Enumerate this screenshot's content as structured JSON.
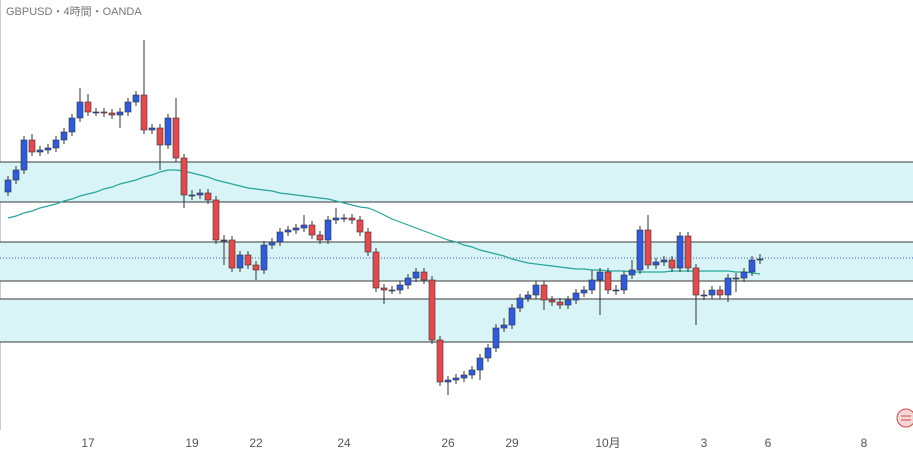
{
  "chart_data": {
    "type": "candlestick",
    "title": "GBPUSD・4時間・OANDA",
    "categories": [
      null,
      null,
      null,
      null,
      null,
      null,
      null,
      null,
      null,
      null,
      "17",
      null,
      null,
      null,
      null,
      null,
      null,
      null,
      null,
      null,
      null,
      null,
      null,
      "19",
      null,
      null,
      null,
      null,
      null,
      null,
      null,
      "22",
      null,
      null,
      null,
      null,
      null,
      null,
      null,
      null,
      null,
      null,
      "24",
      null,
      null,
      null,
      null,
      null,
      null,
      null,
      null,
      null,
      null,
      null,
      null,
      "26",
      null,
      null,
      null,
      null,
      null,
      null,
      null,
      "29",
      null,
      null,
      null,
      null,
      null,
      null,
      null,
      null,
      null,
      null,
      null,
      "10月",
      null,
      null,
      null,
      null,
      null,
      null,
      null,
      null,
      null,
      null,
      null,
      "3",
      null,
      null,
      null,
      null,
      null,
      null,
      null,
      "6",
      null,
      null,
      null,
      null,
      null,
      null,
      null,
      null,
      null,
      null,
      null,
      "8"
    ],
    "open": [
      238,
      250,
      260,
      290,
      278,
      280,
      282,
      290,
      298,
      312,
      328,
      318,
      318,
      317,
      315,
      318,
      328,
      335,
      300,
      302,
      285,
      312,
      272,
      235,
      235,
      237,
      230,
      190,
      190,
      162,
      175,
      165,
      160,
      185,
      188,
      198,
      200,
      202,
      205,
      195,
      190,
      210,
      212,
      212,
      210,
      198,
      178,
      142,
      140,
      140,
      145,
      152,
      158,
      150,
      90,
      48,
      50,
      52,
      55,
      60,
      72,
      82,
      102,
      105,
      122,
      132,
      135,
      145,
      130,
      128,
      125,
      130,
      137,
      140,
      150,
      158,
      140,
      140,
      155,
      160,
      200,
      165,
      168,
      170,
      162,
      194,
      162,
      135,
      135,
      140,
      135,
      152,
      152,
      158,
      170,
      null,
      null,
      null,
      null,
      null,
      null,
      null,
      null,
      null,
      null,
      null,
      null,
      null
    ],
    "high": [
      254,
      264,
      294,
      296,
      284,
      286,
      294,
      302,
      316,
      342,
      336,
      322,
      322,
      321,
      322,
      332,
      339,
      390,
      306,
      306,
      316,
      332,
      276,
      240,
      241,
      241,
      234,
      195,
      194,
      179,
      179,
      169,
      189,
      192,
      202,
      204,
      206,
      215,
      209,
      199,
      214,
      222,
      216,
      216,
      214,
      202,
      182,
      146,
      144,
      149,
      156,
      162,
      162,
      154,
      94,
      54,
      56,
      59,
      64,
      76,
      86,
      106,
      112,
      126,
      136,
      139,
      149,
      149,
      134,
      132,
      134,
      141,
      144,
      160,
      162,
      162,
      145,
      159,
      170,
      204,
      215,
      172,
      174,
      174,
      198,
      198,
      166,
      140,
      144,
      144,
      156,
      157,
      162,
      174,
      176,
      null,
      null,
      null,
      null,
      null,
      null,
      null,
      null,
      null,
      null,
      null,
      null,
      null
    ],
    "low": [
      234,
      246,
      256,
      274,
      274,
      276,
      278,
      286,
      294,
      308,
      314,
      314,
      313,
      311,
      302,
      314,
      324,
      296,
      296,
      260,
      281,
      268,
      222,
      230,
      231,
      226,
      186,
      165,
      158,
      158,
      161,
      150,
      156,
      181,
      184,
      194,
      196,
      198,
      191,
      186,
      186,
      206,
      208,
      206,
      194,
      174,
      138,
      126,
      136,
      136,
      141,
      148,
      146,
      86,
      44,
      35,
      46,
      48,
      51,
      50,
      68,
      78,
      98,
      101,
      118,
      128,
      131,
      120,
      124,
      121,
      121,
      126,
      133,
      136,
      115,
      136,
      135,
      136,
      151,
      156,
      161,
      161,
      164,
      158,
      158,
      158,
      105,
      130,
      131,
      131,
      128,
      138,
      148,
      154,
      166,
      null,
      null,
      null,
      null,
      null,
      null,
      null,
      null,
      null,
      null,
      null,
      null,
      null
    ],
    "close": [
      250,
      260,
      290,
      278,
      280,
      282,
      290,
      298,
      312,
      328,
      318,
      318,
      317,
      315,
      318,
      328,
      335,
      300,
      302,
      285,
      312,
      272,
      235,
      235,
      237,
      230,
      190,
      190,
      162,
      175,
      165,
      160,
      185,
      188,
      198,
      200,
      202,
      205,
      195,
      190,
      210,
      212,
      212,
      210,
      198,
      178,
      142,
      140,
      140,
      145,
      152,
      158,
      150,
      90,
      48,
      50,
      52,
      55,
      60,
      72,
      82,
      102,
      105,
      122,
      132,
      135,
      145,
      130,
      128,
      125,
      130,
      137,
      140,
      150,
      158,
      140,
      140,
      155,
      160,
      200,
      165,
      168,
      170,
      162,
      194,
      162,
      135,
      135,
      140,
      135,
      152,
      152,
      158,
      170,
      171,
      null,
      null,
      null,
      null,
      null,
      null,
      null,
      null,
      null,
      null,
      null,
      null,
      null
    ],
    "moving_average": {
      "color": "#26a69a",
      "values": [
        212,
        214,
        217,
        219,
        222,
        224,
        226,
        229,
        231,
        234,
        236,
        238,
        241,
        243,
        246,
        248,
        250,
        253,
        255,
        258,
        260,
        260,
        259,
        257,
        255,
        253,
        250,
        248,
        246,
        244,
        242,
        241,
        240,
        239,
        237,
        236,
        235,
        234,
        233,
        232,
        231,
        229,
        227,
        225,
        223,
        222,
        219,
        215,
        211,
        208,
        205,
        202,
        199,
        196,
        193,
        190,
        188,
        185,
        183,
        180,
        178,
        176,
        174,
        171,
        169,
        167,
        166,
        165,
        164,
        163,
        162,
        161,
        161,
        160,
        160,
        159,
        159,
        159,
        158,
        158,
        158,
        158,
        158,
        159,
        159,
        159,
        159,
        159,
        159,
        159,
        159,
        158,
        158,
        157,
        156,
        null,
        null,
        null,
        null,
        null,
        null,
        null,
        null,
        null,
        null,
        null,
        null,
        null
      ]
    },
    "up_color": "#2f5be0",
    "down_color": "#e5484d",
    "zones": [
      [
        88,
        131
      ],
      [
        149,
        188
      ],
      [
        228,
        268
      ]
    ],
    "zone_color": "#d8f4f7",
    "last_price": 172,
    "last_price_color": "#2f5be0",
    "ylim": [
      0,
      430
    ]
  }
}
